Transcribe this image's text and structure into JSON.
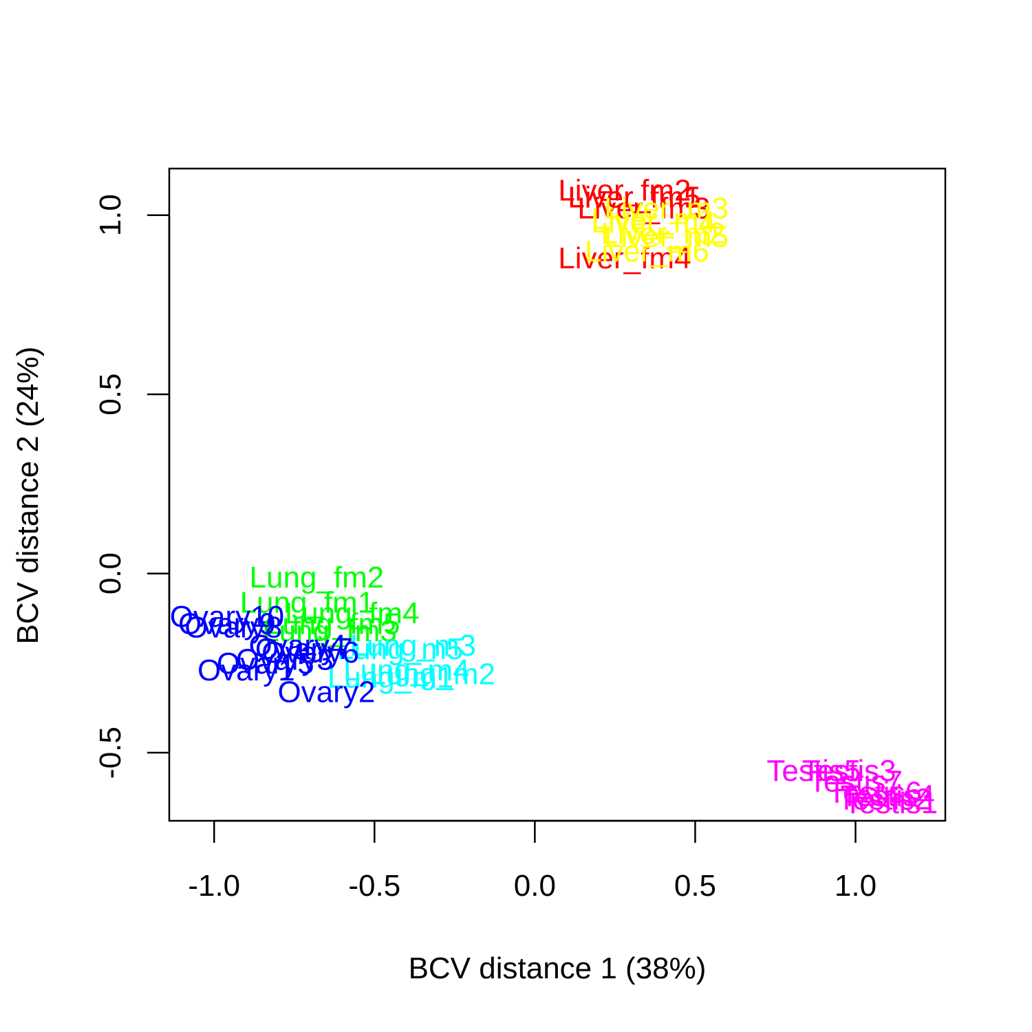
{
  "chart_data": {
    "type": "scatter",
    "title": "",
    "xlabel": "BCV distance 1 (38%)",
    "ylabel": "BCV distance 2 (24%)",
    "xlim": [
      -1.14,
      1.28
    ],
    "ylim": [
      -0.69,
      1.13
    ],
    "x_ticks": [
      -1.0,
      -0.5,
      0.0,
      0.5,
      1.0
    ],
    "x_tick_labels": [
      "-1.0",
      "-0.5",
      "0.0",
      "0.5",
      "1.0"
    ],
    "y_ticks": [
      -0.5,
      0.0,
      0.5,
      1.0
    ],
    "y_tick_labels": [
      "-0.5",
      "0.0",
      "0.5",
      "1.0"
    ],
    "grid": false,
    "legend": "none",
    "series": [
      {
        "color": "#FF0000",
        "points": [
          {
            "label": "Liver_fm2",
            "x": 0.28,
            "y": 1.07
          },
          {
            "label": "Liver_fm5",
            "x": 0.31,
            "y": 1.05
          },
          {
            "label": "Liver_fm1",
            "x": 0.31,
            "y": 1.05
          },
          {
            "label": "Liver_fm3",
            "x": 0.34,
            "y": 1.02
          },
          {
            "label": "Liver_fm4",
            "x": 0.28,
            "y": 0.88
          }
        ]
      },
      {
        "color": "#FFFF00",
        "points": [
          {
            "label": "Liver_m3",
            "x": 0.41,
            "y": 1.02
          },
          {
            "label": "Liver_m1",
            "x": 0.37,
            "y": 0.99
          },
          {
            "label": "Liver_m4",
            "x": 0.37,
            "y": 0.98
          },
          {
            "label": "Liver_m2",
            "x": 0.4,
            "y": 0.95
          },
          {
            "label": "Liver_m5",
            "x": 0.41,
            "y": 0.94
          },
          {
            "label": "Liver_m6",
            "x": 0.35,
            "y": 0.9
          }
        ]
      },
      {
        "color": "#00FF00",
        "points": [
          {
            "label": "Lung_fm2",
            "x": -0.68,
            "y": -0.01
          },
          {
            "label": "Lung_fm1",
            "x": -0.71,
            "y": -0.08
          },
          {
            "label": "Lung_fm4",
            "x": -0.57,
            "y": -0.11
          },
          {
            "label": "Lung_fm5",
            "x": -0.63,
            "y": -0.14
          },
          {
            "label": "Lung_fm3",
            "x": -0.64,
            "y": -0.16
          }
        ]
      },
      {
        "color": "#00FFFF",
        "points": [
          {
            "label": "Lung_m3",
            "x": -0.38,
            "y": -0.2
          },
          {
            "label": "Lung_m5",
            "x": -0.42,
            "y": -0.21
          },
          {
            "label": "Lung_m4",
            "x": -0.4,
            "y": -0.27
          },
          {
            "label": "Lung_m2",
            "x": -0.32,
            "y": -0.28
          },
          {
            "label": "Lung_m1",
            "x": -0.45,
            "y": -0.29
          }
        ]
      },
      {
        "color": "#0000FF",
        "points": [
          {
            "label": "Ovary10",
            "x": -0.96,
            "y": -0.12
          },
          {
            "label": "Ovary9",
            "x": -0.96,
            "y": -0.14
          },
          {
            "label": "Ovary8",
            "x": -0.94,
            "y": -0.15
          },
          {
            "label": "Ovary4",
            "x": -0.74,
            "y": -0.2
          },
          {
            "label": "Ovary7",
            "x": -0.72,
            "y": -0.21
          },
          {
            "label": "Ovary6",
            "x": -0.7,
            "y": -0.22
          },
          {
            "label": "Ovary3",
            "x": -0.78,
            "y": -0.24
          },
          {
            "label": "Ovary5",
            "x": -0.84,
            "y": -0.25
          },
          {
            "label": "Ovary1",
            "x": -0.9,
            "y": -0.27
          },
          {
            "label": "Ovary2",
            "x": -0.65,
            "y": -0.33
          }
        ]
      },
      {
        "color": "#FF00FF",
        "points": [
          {
            "label": "Testis5",
            "x": 0.87,
            "y": -0.55
          },
          {
            "label": "Testis3",
            "x": 0.98,
            "y": -0.55
          },
          {
            "label": "Testis7",
            "x": 1.0,
            "y": -0.58
          },
          {
            "label": "Testis6",
            "x": 1.06,
            "y": -0.61
          },
          {
            "label": "Testis4",
            "x": 1.1,
            "y": -0.62
          },
          {
            "label": "Testis2",
            "x": 1.09,
            "y": -0.63
          },
          {
            "label": "Testis1",
            "x": 1.11,
            "y": -0.64
          }
        ]
      }
    ]
  }
}
